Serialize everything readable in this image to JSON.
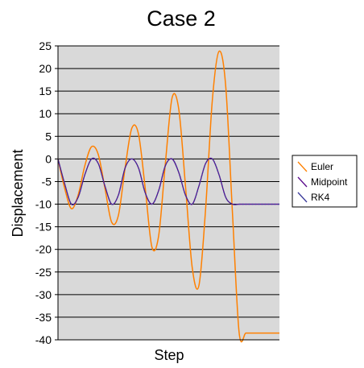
{
  "chart_data": {
    "type": "line",
    "title": "Case 2",
    "xlabel": "Step",
    "ylabel": "Displacement",
    "ylim": [
      -40,
      25
    ],
    "y_ticks": [
      "25",
      "20",
      "15",
      "10",
      "5",
      "0",
      "-5",
      "-10",
      "-15",
      "-20",
      "-25",
      "-30",
      "-35",
      "-40"
    ],
    "grid": true,
    "plot_background": "#d9d9d9",
    "legend_position": "right",
    "x_axis_tick_labels": false,
    "series": [
      {
        "name": "Euler",
        "color": "#ff8000",
        "x": [
          0,
          3,
          6,
          9,
          12,
          15,
          18,
          21,
          24,
          27,
          30,
          33,
          36,
          39,
          42,
          45,
          48,
          51,
          54,
          57,
          60,
          63,
          66,
          69,
          72,
          75,
          78,
          81,
          84,
          87,
          90,
          93,
          96,
          99
        ],
        "values": [
          0,
          -6.5,
          -11.0,
          -8.0,
          -1.5,
          2.7,
          1.0,
          -6.5,
          -14.0,
          -12.5,
          -2.0,
          6.8,
          5.5,
          -6.5,
          -19.5,
          -17.0,
          -1.0,
          13.5,
          11.0,
          -6.0,
          -24.0,
          -28.0,
          -11.0,
          13.0,
          23.8,
          16.0,
          -12.0,
          -38.5,
          -38.5,
          -38.5,
          -38.5,
          -38.5,
          -38.5,
          -38.5
        ]
      },
      {
        "name": "Midpoint",
        "color": "#5a0a8c",
        "x": [
          0,
          3,
          6,
          9,
          12,
          15,
          18,
          21,
          24,
          27,
          30,
          33,
          36,
          39,
          42,
          45,
          48,
          51,
          54,
          57,
          60,
          63,
          66,
          69,
          72,
          75,
          78,
          81,
          84,
          87,
          90,
          93,
          96,
          99
        ],
        "values": [
          0,
          -5.5,
          -10.0,
          -8.5,
          -3.5,
          0,
          -1.0,
          -6.0,
          -10.0,
          -8.0,
          -2.0,
          0,
          -2.0,
          -7.5,
          -10.0,
          -7.0,
          -1.5,
          0,
          -3.0,
          -8.0,
          -10.0,
          -6.0,
          -1.0,
          0,
          -3.5,
          -8.5,
          -10.0,
          -10.0,
          -10.0,
          -10.0,
          -10.0,
          -10.0,
          -10.0,
          -10.0
        ]
      },
      {
        "name": "RK4",
        "color": "#3a3a9a",
        "x": [
          0,
          3,
          6,
          9,
          12,
          15,
          18,
          21,
          24,
          27,
          30,
          33,
          36,
          39,
          42,
          45,
          48,
          51,
          54,
          57,
          60,
          63,
          66,
          69,
          72,
          75,
          78,
          81,
          84,
          87,
          90,
          93,
          96,
          99
        ],
        "values": [
          0,
          -5.5,
          -10.0,
          -8.5,
          -3.5,
          0,
          -1.0,
          -6.0,
          -10.0,
          -8.0,
          -2.0,
          0,
          -2.0,
          -7.5,
          -10.0,
          -7.0,
          -1.5,
          0,
          -3.0,
          -8.0,
          -10.0,
          -6.0,
          -1.0,
          0,
          -3.5,
          -8.5,
          -10.0,
          -10.0,
          -10.0,
          -10.0,
          -10.0,
          -10.0,
          -10.0,
          -10.0
        ]
      }
    ]
  }
}
